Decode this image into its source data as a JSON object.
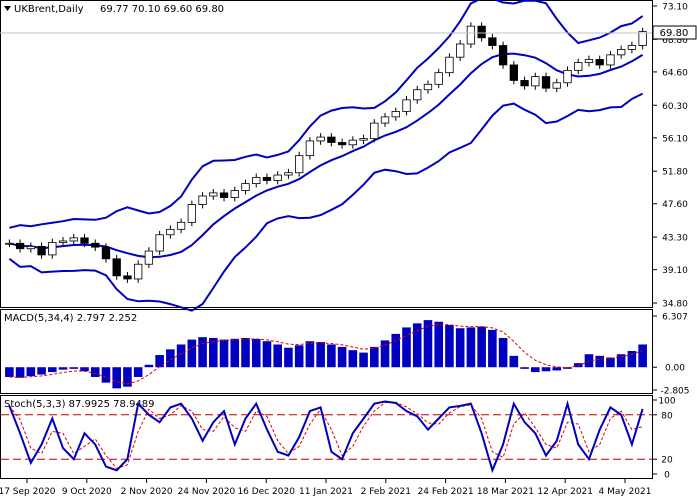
{
  "main": {
    "symbol_label": "UKBrent,Daily",
    "ohlc": "69.77 70.10 69.60 69.80",
    "price_ticks": [
      "73.10",
      "68.80",
      "64.60",
      "60.30",
      "56.10",
      "51.80",
      "47.60",
      "43.30",
      "39.10",
      "34.80"
    ],
    "current_price": "69.80",
    "colors": {
      "bands": "#0000c0",
      "bull": "#000000",
      "bear": "#000000",
      "grid": "#c0c0c0",
      "price_box": "#ffffff"
    }
  },
  "macd": {
    "label": "MACD(5,34,4) 2.797 2.252",
    "ticks": [
      "6.307",
      "0.00",
      "-2.805"
    ],
    "colors": {
      "histogram": "#0000c0",
      "signal": "#e00000"
    }
  },
  "stoch": {
    "label": "Stoch(5,3,3) 87.9925 78.9489",
    "ticks": [
      "100",
      "80",
      "20",
      "0"
    ],
    "colors": {
      "main": "#0000c0",
      "signal": "#e00000",
      "levels": "#c00000"
    }
  },
  "x_axis": {
    "dates": [
      "17 Sep 2020",
      "9 Oct 2020",
      "2 Nov 2020",
      "24 Nov 2020",
      "16 Dec 2020",
      "11 Jan 2021",
      "2 Feb 2021",
      "24 Feb 2021",
      "18 Mar 2021",
      "12 Apr 2021",
      "4 May 2021"
    ]
  },
  "chart_data": [
    {
      "type": "candlestick",
      "title": "UKBrent,Daily",
      "x": [
        "17 Sep 2020",
        "9 Oct 2020",
        "2 Nov 2020",
        "24 Nov 2020",
        "16 Dec 2020",
        "11 Jan 2021",
        "2 Feb 2021",
        "24 Feb 2021",
        "18 Mar 2021",
        "12 Apr 2021",
        "4 May 2021"
      ],
      "close_series": [
        42.5,
        41.8,
        42.1,
        41.0,
        42.6,
        42.8,
        43.2,
        42.5,
        42.0,
        40.5,
        38.3,
        37.9,
        39.8,
        41.5,
        43.6,
        44.3,
        45.2,
        47.5,
        48.6,
        49.0,
        48.4,
        49.3,
        50.2,
        51.0,
        50.6,
        51.3,
        51.6,
        53.8,
        55.7,
        56.2,
        55.5,
        55.2,
        55.8,
        56.0,
        58.0,
        58.8,
        59.5,
        61.0,
        62.3,
        63.0,
        64.5,
        66.5,
        68.2,
        70.5,
        69.0,
        68.0,
        65.5,
        63.5,
        62.8,
        64.0,
        62.5,
        63.2,
        64.8,
        65.8,
        66.2,
        65.5,
        66.8,
        67.5,
        68.0,
        69.8
      ],
      "ylim": [
        34.8,
        73.1
      ],
      "last_ohlc": {
        "open": 69.77,
        "high": 70.1,
        "low": 69.6,
        "close": 69.8
      }
    },
    {
      "type": "bar",
      "title": "MACD(5,34,4)",
      "values_main": [
        -1.2,
        -1.3,
        -1.1,
        -0.9,
        -0.6,
        -0.3,
        -0.2,
        -0.5,
        -1.2,
        -1.9,
        -2.6,
        -2.4,
        -1.2,
        0.3,
        1.5,
        2.2,
        2.8,
        3.4,
        3.7,
        3.6,
        3.4,
        3.5,
        3.6,
        3.5,
        3.2,
        2.8,
        2.4,
        2.7,
        3.2,
        3.1,
        2.8,
        2.5,
        2.1,
        1.8,
        2.5,
        3.3,
        4.1,
        4.9,
        5.4,
        5.8,
        5.6,
        5.2,
        4.8,
        4.9,
        5.0,
        4.6,
        3.6,
        1.4,
        -0.2,
        -0.6,
        -0.5,
        -0.4,
        -0.2,
        0.5,
        1.6,
        1.4,
        1.2,
        1.6,
        2.0,
        2.8
      ],
      "current_main": 2.797,
      "current_signal": 2.252,
      "ylim": [
        -2.805,
        6.307
      ]
    },
    {
      "type": "line",
      "title": "Stoch(5,3,3)",
      "values_main": [
        92,
        55,
        15,
        40,
        75,
        35,
        20,
        55,
        40,
        10,
        5,
        20,
        95,
        80,
        70,
        90,
        95,
        75,
        45,
        70,
        85,
        40,
        75,
        95,
        60,
        30,
        25,
        50,
        85,
        90,
        30,
        20,
        55,
        75,
        95,
        98,
        96,
        85,
        78,
        60,
        75,
        90,
        92,
        95,
        55,
        5,
        40,
        95,
        70,
        55,
        25,
        45,
        95,
        40,
        20,
        60,
        90,
        80,
        40,
        88
      ],
      "current_main": 87.9925,
      "current_signal": 78.9489,
      "ylim": [
        0,
        100
      ],
      "levels": [
        20,
        80
      ]
    }
  ]
}
